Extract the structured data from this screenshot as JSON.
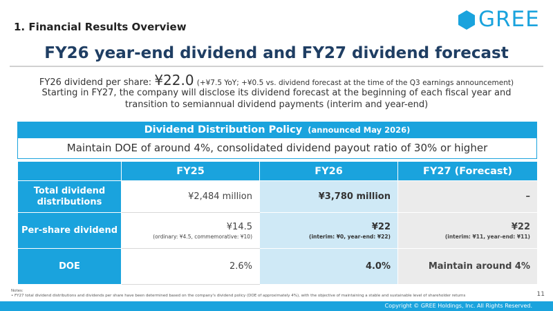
{
  "section_title": "1. Financial Results Overview",
  "logo_text": "GREE",
  "main_title": "FY26 year-end dividend and FY27 dividend forecast",
  "lead": {
    "prefix": "FY26 dividend per share: ",
    "amount": "¥22.0",
    "detail": "(+¥7.5 YoY; +¥0.5 vs. dividend forecast at the time of the Q3 earnings announcement)",
    "line2": "Starting in FY27, the company will disclose its dividend forecast at the beginning of each fiscal year and",
    "line3": "transition to semiannual dividend payments (interim and year-end)"
  },
  "policy": {
    "title": "Dividend Distribution Policy",
    "subtitle": "(announced May 2026)",
    "text": "Maintain DOE of around 4%, consolidated dividend payout ratio of 30% or higher"
  },
  "table": {
    "headers": [
      "",
      "FY25",
      "FY26",
      "FY27 (Forecast)"
    ],
    "rows": [
      {
        "label": "Total dividend distributions",
        "fy25": "¥2,484 million",
        "fy25_note": "",
        "fy26": "¥3,780 million",
        "fy26_note": "",
        "fy27": "–",
        "fy27_note": ""
      },
      {
        "label": "Per-share dividend",
        "fy25": "¥14.5",
        "fy25_note": "(ordinary: ¥4.5, commemorative: ¥10)",
        "fy26": "¥22",
        "fy26_note": "(interim: ¥0, year-end: ¥22)",
        "fy27": "¥22",
        "fy27_note": "(interim: ¥11, year-end: ¥11)"
      },
      {
        "label": "DOE",
        "fy25": "2.6%",
        "fy25_note": "",
        "fy26": "4.0%",
        "fy26_note": "",
        "fy27": "Maintain around 4%",
        "fy27_note": ""
      }
    ]
  },
  "notes": {
    "heading": "Notes:",
    "item": "•  FY27 total dividend distributions and dividends per share have been determined based on the company's dividend policy (DOE of approximately 4%), with the objective of maintaining a stable and sustainable level of shareholder returns"
  },
  "page_number": "11",
  "copyright": "Copyright © GREE Holdings, Inc. All Rights Reserved.",
  "colors": {
    "accent": "#1aa3dd",
    "title": "#1f3e63",
    "fy26_fill": "#cfe9f6",
    "fy27_fill": "#ebebeb"
  }
}
